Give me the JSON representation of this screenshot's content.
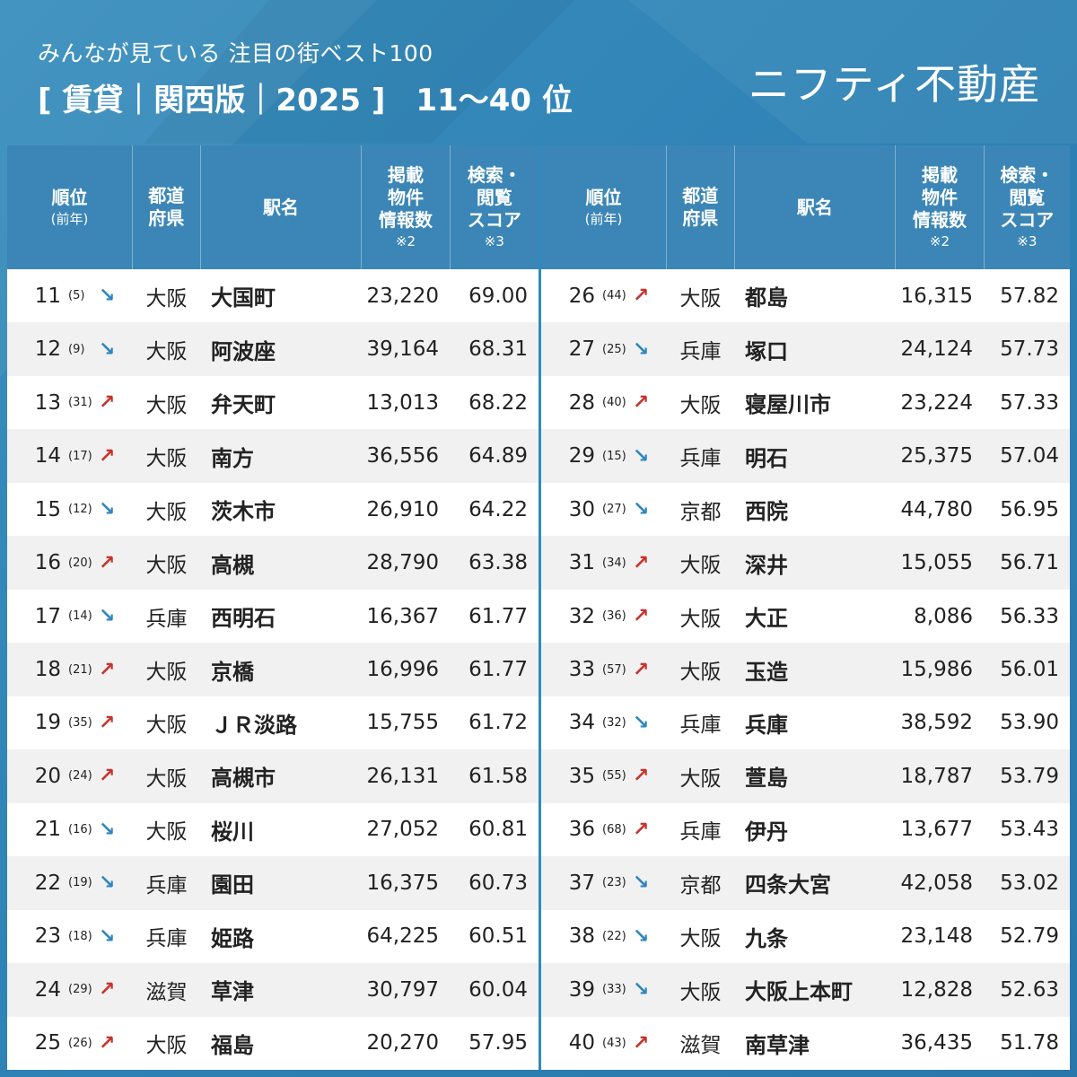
{
  "header": {
    "subtitle": "みんなが見ている 注目の街ベスト100",
    "title": "[ 賃貸｜関西版｜2025 ]",
    "range": "11〜40 位",
    "brand": "ニフティ不動産"
  },
  "columns": {
    "rank": "順位",
    "rank_sub": "(前年)",
    "pref_1": "都道",
    "pref_2": "府県",
    "name": "駅名",
    "count_1": "掲載",
    "count_2": "物件",
    "count_3": "情報数",
    "count_note": "※2",
    "score_1": "検索・",
    "score_2": "閲覧",
    "score_3": "スコア",
    "score_note": "※3"
  },
  "colors": {
    "up": "#c8332d",
    "down": "#2f86bd",
    "header_bg": "#3b86b6"
  },
  "left_rows": [
    {
      "rank": "11",
      "prev": "(5)",
      "trend": "down",
      "pref": "大阪",
      "name": "大国町",
      "count": "23,220",
      "score": "69.00"
    },
    {
      "rank": "12",
      "prev": "(9)",
      "trend": "down",
      "pref": "大阪",
      "name": "阿波座",
      "count": "39,164",
      "score": "68.31"
    },
    {
      "rank": "13",
      "prev": "(31)",
      "trend": "up",
      "pref": "大阪",
      "name": "弁天町",
      "count": "13,013",
      "score": "68.22"
    },
    {
      "rank": "14",
      "prev": "(17)",
      "trend": "up",
      "pref": "大阪",
      "name": "南方",
      "count": "36,556",
      "score": "64.89"
    },
    {
      "rank": "15",
      "prev": "(12)",
      "trend": "down",
      "pref": "大阪",
      "name": "茨木市",
      "count": "26,910",
      "score": "64.22"
    },
    {
      "rank": "16",
      "prev": "(20)",
      "trend": "up",
      "pref": "大阪",
      "name": "高槻",
      "count": "28,790",
      "score": "63.38"
    },
    {
      "rank": "17",
      "prev": "(14)",
      "trend": "down",
      "pref": "兵庫",
      "name": "西明石",
      "count": "16,367",
      "score": "61.77"
    },
    {
      "rank": "18",
      "prev": "(21)",
      "trend": "up",
      "pref": "大阪",
      "name": "京橋",
      "count": "16,996",
      "score": "61.77"
    },
    {
      "rank": "19",
      "prev": "(35)",
      "trend": "up",
      "pref": "大阪",
      "name": "ＪＲ淡路",
      "count": "15,755",
      "score": "61.72"
    },
    {
      "rank": "20",
      "prev": "(24)",
      "trend": "up",
      "pref": "大阪",
      "name": "高槻市",
      "count": "26,131",
      "score": "61.58"
    },
    {
      "rank": "21",
      "prev": "(16)",
      "trend": "down",
      "pref": "大阪",
      "name": "桜川",
      "count": "27,052",
      "score": "60.81"
    },
    {
      "rank": "22",
      "prev": "(19)",
      "trend": "down",
      "pref": "兵庫",
      "name": "園田",
      "count": "16,375",
      "score": "60.73"
    },
    {
      "rank": "23",
      "prev": "(18)",
      "trend": "down",
      "pref": "兵庫",
      "name": "姫路",
      "count": "64,225",
      "score": "60.51"
    },
    {
      "rank": "24",
      "prev": "(29)",
      "trend": "up",
      "pref": "滋賀",
      "name": "草津",
      "count": "30,797",
      "score": "60.04"
    },
    {
      "rank": "25",
      "prev": "(26)",
      "trend": "up",
      "pref": "大阪",
      "name": "福島",
      "count": "20,270",
      "score": "57.95"
    }
  ],
  "right_rows": [
    {
      "rank": "26",
      "prev": "(44)",
      "trend": "up",
      "pref": "大阪",
      "name": "都島",
      "count": "16,315",
      "score": "57.82"
    },
    {
      "rank": "27",
      "prev": "(25)",
      "trend": "down",
      "pref": "兵庫",
      "name": "塚口",
      "count": "24,124",
      "score": "57.73"
    },
    {
      "rank": "28",
      "prev": "(40)",
      "trend": "up",
      "pref": "大阪",
      "name": "寝屋川市",
      "count": "23,224",
      "score": "57.33"
    },
    {
      "rank": "29",
      "prev": "(15)",
      "trend": "down",
      "pref": "兵庫",
      "name": "明石",
      "count": "25,375",
      "score": "57.04"
    },
    {
      "rank": "30",
      "prev": "(27)",
      "trend": "down",
      "pref": "京都",
      "name": "西院",
      "count": "44,780",
      "score": "56.95"
    },
    {
      "rank": "31",
      "prev": "(34)",
      "trend": "up",
      "pref": "大阪",
      "name": "深井",
      "count": "15,055",
      "score": "56.71"
    },
    {
      "rank": "32",
      "prev": "(36)",
      "trend": "up",
      "pref": "大阪",
      "name": "大正",
      "count": "8,086",
      "score": "56.33"
    },
    {
      "rank": "33",
      "prev": "(57)",
      "trend": "up",
      "pref": "大阪",
      "name": "玉造",
      "count": "15,986",
      "score": "56.01"
    },
    {
      "rank": "34",
      "prev": "(32)",
      "trend": "down",
      "pref": "兵庫",
      "name": "兵庫",
      "count": "38,592",
      "score": "53.90"
    },
    {
      "rank": "35",
      "prev": "(55)",
      "trend": "up",
      "pref": "大阪",
      "name": "萱島",
      "count": "18,787",
      "score": "53.79"
    },
    {
      "rank": "36",
      "prev": "(68)",
      "trend": "up",
      "pref": "兵庫",
      "name": "伊丹",
      "count": "13,677",
      "score": "53.43"
    },
    {
      "rank": "37",
      "prev": "(23)",
      "trend": "down",
      "pref": "京都",
      "name": "四条大宮",
      "count": "42,058",
      "score": "53.02"
    },
    {
      "rank": "38",
      "prev": "(22)",
      "trend": "down",
      "pref": "大阪",
      "name": "九条",
      "count": "23,148",
      "score": "52.79"
    },
    {
      "rank": "39",
      "prev": "(33)",
      "trend": "down",
      "pref": "大阪",
      "name": "大阪上本町",
      "count": "12,828",
      "score": "52.63"
    },
    {
      "rank": "40",
      "prev": "(43)",
      "trend": "up",
      "pref": "滋賀",
      "name": "南草津",
      "count": "36,435",
      "score": "51.78"
    }
  ]
}
